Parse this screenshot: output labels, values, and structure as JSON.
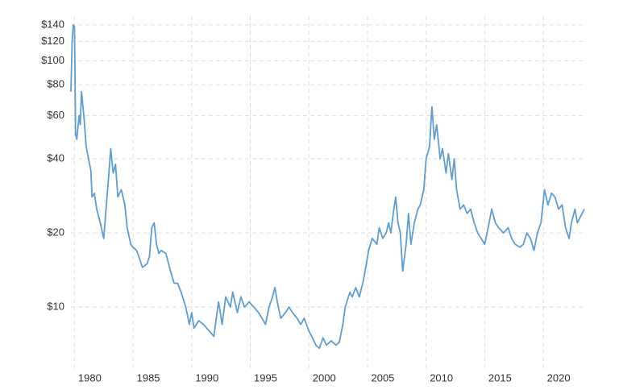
{
  "chart_data": {
    "type": "line",
    "log_scale_y": true,
    "grid": true,
    "color": "#5b9fd6",
    "x": [
      1979.7,
      1979.8,
      1979.9,
      1980.0,
      1980.1,
      1980.2,
      1980.4,
      1980.5,
      1980.6,
      1980.8,
      1981.0,
      1981.2,
      1981.4,
      1981.5,
      1981.7,
      1981.9,
      1982.2,
      1982.5,
      1982.7,
      1982.9,
      1983.1,
      1983.3,
      1983.5,
      1983.7,
      1984.0,
      1984.3,
      1984.5,
      1984.8,
      1985.0,
      1985.3,
      1985.5,
      1985.8,
      1986.2,
      1986.4,
      1986.6,
      1986.8,
      1987.0,
      1987.2,
      1987.4,
      1987.8,
      1988.2,
      1988.5,
      1988.8,
      1989.1,
      1989.5,
      1989.8,
      1990.0,
      1990.2,
      1990.6,
      1991.0,
      1991.5,
      1991.9,
      1992.1,
      1992.3,
      1992.6,
      1992.9,
      1993.3,
      1993.5,
      1993.9,
      1994.2,
      1994.5,
      1994.9,
      1995.3,
      1995.7,
      1996.0,
      1996.3,
      1996.6,
      1996.9,
      1997.1,
      1997.3,
      1997.6,
      1998.0,
      1998.3,
      1998.6,
      1999.0,
      1999.3,
      1999.6,
      2000.0,
      2000.3,
      2000.6,
      2000.9,
      2001.2,
      2001.5,
      2001.9,
      2002.3,
      2002.6,
      2002.9,
      2003.1,
      2003.5,
      2003.7,
      2004.0,
      2004.3,
      2004.6,
      2004.8,
      2005.1,
      2005.4,
      2005.8,
      2006.0,
      2006.3,
      2006.6,
      2006.8,
      2007.0,
      2007.2,
      2007.4,
      2007.6,
      2007.8,
      2008.0,
      2008.3,
      2008.5,
      2008.7,
      2009.0,
      2009.3,
      2009.5,
      2009.8,
      2010.0,
      2010.3,
      2010.4,
      2010.5,
      2010.7,
      2010.9,
      2011.2,
      2011.4,
      2011.7,
      2011.9,
      2012.2,
      2012.4,
      2012.6,
      2012.9,
      2013.2,
      2013.5,
      2013.8,
      2014.1,
      2014.4,
      2014.7,
      2015.0,
      2015.3,
      2015.6,
      2015.9,
      2016.2,
      2016.6,
      2017.0,
      2017.3,
      2017.6,
      2018.0,
      2018.3,
      2018.6,
      2018.9,
      2019.2,
      2019.5,
      2019.8,
      2020.1,
      2020.4,
      2020.7,
      2021.0,
      2021.3,
      2021.6,
      2021.9,
      2022.2,
      2022.4,
      2022.7,
      2022.9,
      2023.5
    ],
    "values": [
      75,
      120,
      140,
      138,
      50,
      48,
      60,
      55,
      75,
      60,
      45,
      40,
      36,
      28,
      29,
      25,
      22,
      19,
      25,
      33,
      44,
      35,
      38,
      28,
      30,
      26,
      21,
      18,
      17.5,
      17,
      16,
      14.5,
      15,
      16,
      21,
      22,
      18,
      16.5,
      17,
      16.5,
      14,
      12.5,
      12.5,
      11.5,
      10,
      8.5,
      9.5,
      8.2,
      8.8,
      8.5,
      8,
      7.6,
      9,
      10.5,
      8.5,
      11,
      10,
      11.5,
      9.5,
      11,
      10,
      10.5,
      10,
      9.5,
      9,
      8.5,
      10,
      11,
      12,
      10.5,
      9,
      9.5,
      10,
      9.5,
      9,
      8.5,
      9,
      8,
      7.5,
      7,
      6.8,
      7.5,
      7,
      7.3,
      7,
      7.2,
      8.5,
      10,
      11.5,
      11,
      12,
      11,
      12.5,
      14,
      17,
      19,
      18,
      21,
      19,
      20,
      22,
      20,
      24,
      28,
      22,
      20,
      14,
      18,
      24,
      18,
      22,
      25,
      26,
      30,
      40,
      45,
      55,
      65,
      48,
      55,
      40,
      44,
      35,
      42,
      33,
      40,
      30,
      25,
      26,
      24,
      25,
      22,
      20,
      19,
      18,
      21,
      25,
      22,
      21,
      20,
      21,
      19,
      18,
      17.5,
      18,
      20,
      19,
      17,
      20,
      22,
      30,
      26,
      29,
      28,
      25,
      26,
      21,
      19,
      22,
      25,
      22,
      25
    ],
    "xlim": [
      1979.7,
      2023.5
    ],
    "xticks": [
      1980,
      1985,
      1990,
      1995,
      2000,
      2005,
      2010,
      2015,
      2020
    ],
    "ylim": [
      5.6,
      152
    ],
    "yticks": [
      {
        "value": 10,
        "label": "$10"
      },
      {
        "value": 20,
        "label": "$20"
      },
      {
        "value": 40,
        "label": "$40"
      },
      {
        "value": 60,
        "label": "$60"
      },
      {
        "value": 80,
        "label": "$80"
      },
      {
        "value": 100,
        "label": "$100"
      },
      {
        "value": 120,
        "label": "$120"
      },
      {
        "value": 140,
        "label": "$140"
      }
    ]
  }
}
